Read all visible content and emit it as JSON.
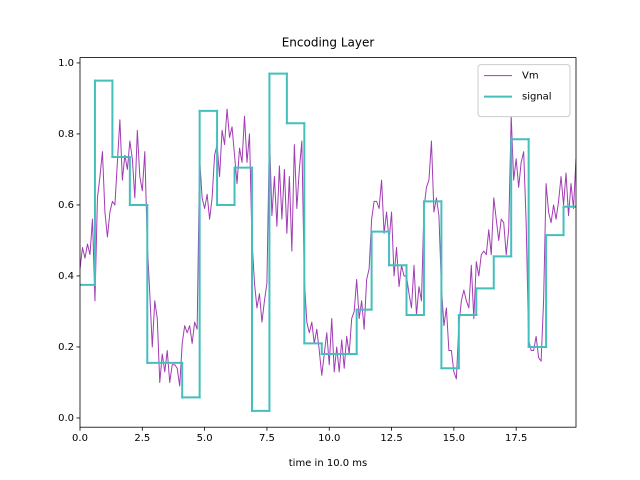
{
  "chart_data": {
    "type": "line",
    "title": "Encoding Layer",
    "xlabel": "time in 10.0 ms",
    "xlim": [
      0,
      19.9
    ],
    "ylim": [
      -0.026,
      1.015
    ],
    "xticks": [
      {
        "value": 0,
        "label": "0.0"
      },
      2.5,
      {
        "value": 5,
        "label": "5.0"
      },
      7.5,
      {
        "value": 10,
        "label": "10.0"
      },
      12.5,
      {
        "value": 15,
        "label": "15.0"
      },
      17.5
    ],
    "yticks": [
      {
        "value": 0,
        "label": "0.0"
      },
      0.2,
      0.4,
      0.6,
      0.8,
      {
        "value": 1,
        "label": "1.0"
      }
    ],
    "legend": "upper right",
    "series": [
      {
        "name": "Vm",
        "color": "#a23cb4",
        "linewidth": 1,
        "x": [
          0,
          0.1,
          0.2,
          0.3,
          0.4,
          0.5,
          0.6,
          0.7,
          0.8,
          0.9,
          1,
          1.1,
          1.2,
          1.3,
          1.4,
          1.5,
          1.6,
          1.7,
          1.8,
          1.9,
          2,
          2.1,
          2.2,
          2.3,
          2.4,
          2.5,
          2.6,
          2.7,
          2.8,
          2.9,
          3,
          3.1,
          3.2,
          3.3,
          3.4,
          3.5,
          3.6,
          3.7,
          3.8,
          3.9,
          4,
          4.1,
          4.2,
          4.3,
          4.4,
          4.5,
          4.6,
          4.7,
          4.8,
          4.9,
          5,
          5.1,
          5.2,
          5.3,
          5.4,
          5.5,
          5.6,
          5.7,
          5.8,
          5.9,
          6,
          6.1,
          6.2,
          6.3,
          6.4,
          6.5,
          6.6,
          6.7,
          6.8,
          6.9,
          7,
          7.1,
          7.2,
          7.3,
          7.4,
          7.5,
          7.6,
          7.7,
          7.8,
          7.9,
          8,
          8.1,
          8.2,
          8.3,
          8.4,
          8.5,
          8.6,
          8.7,
          8.8,
          8.9,
          9,
          9.1,
          9.2,
          9.3,
          9.4,
          9.5,
          9.6,
          9.7,
          9.8,
          9.9,
          10,
          10.1,
          10.2,
          10.3,
          10.4,
          10.5,
          10.6,
          10.7,
          10.8,
          10.9,
          11,
          11.1,
          11.2,
          11.3,
          11.4,
          11.5,
          11.6,
          11.7,
          11.8,
          11.9,
          12,
          12.1,
          12.2,
          12.3,
          12.4,
          12.5,
          12.6,
          12.7,
          12.8,
          12.9,
          13,
          13.1,
          13.2,
          13.3,
          13.4,
          13.5,
          13.6,
          13.7,
          13.8,
          13.9,
          14,
          14.1,
          14.2,
          14.3,
          14.4,
          14.5,
          14.6,
          14.7,
          14.8,
          14.9,
          15,
          15.1,
          15.2,
          15.3,
          15.4,
          15.5,
          15.6,
          15.7,
          15.8,
          15.9,
          16,
          16.1,
          16.2,
          16.3,
          16.4,
          16.5,
          16.6,
          16.7,
          16.8,
          16.9,
          17,
          17.1,
          17.2,
          17.3,
          17.4,
          17.5,
          17.6,
          17.7,
          17.8,
          17.9,
          18,
          18.1,
          18.2,
          18.3,
          18.4,
          18.5,
          18.6,
          18.7,
          18.8,
          18.9,
          19,
          19.1,
          19.2,
          19.3,
          19.4,
          19.5,
          19.6,
          19.7,
          19.8,
          19.9
        ],
        "values": [
          0.42,
          0.48,
          0.45,
          0.49,
          0.46,
          0.56,
          0.33,
          0.62,
          0.68,
          0.75,
          0.58,
          0.51,
          0.58,
          0.61,
          0.6,
          0.72,
          0.84,
          0.67,
          0.74,
          0.7,
          0.78,
          0.73,
          0.62,
          0.81,
          0.68,
          0.64,
          0.75,
          0.49,
          0.35,
          0.2,
          0.33,
          0.28,
          0.1,
          0.18,
          0.13,
          0.19,
          0.1,
          0.15,
          0.15,
          0.14,
          0.09,
          0.21,
          0.26,
          0.24,
          0.26,
          0.21,
          0.27,
          0.25,
          0.73,
          0.62,
          0.59,
          0.63,
          0.56,
          0.62,
          0.74,
          0.77,
          0.68,
          0.81,
          0.77,
          0.87,
          0.79,
          0.82,
          0.74,
          0.66,
          0.76,
          0.72,
          0.85,
          0.72,
          0.8,
          0.5,
          0.38,
          0.31,
          0.35,
          0.27,
          0.33,
          0.38,
          0.8,
          0.57,
          0.68,
          0.54,
          0.71,
          0.56,
          0.7,
          0.52,
          0.68,
          0.47,
          0.77,
          0.59,
          0.7,
          0.78,
          0.39,
          0.27,
          0.24,
          0.27,
          0.21,
          0.25,
          0.19,
          0.12,
          0.18,
          0.24,
          0.15,
          0.28,
          0.13,
          0.2,
          0.13,
          0.22,
          0.14,
          0.23,
          0.18,
          0.28,
          0.3,
          0.39,
          0.28,
          0.33,
          0.25,
          0.39,
          0.42,
          0.56,
          0.61,
          0.61,
          0.59,
          0.67,
          0.52,
          0.58,
          0.5,
          0.58,
          0.4,
          0.48,
          0.37,
          0.43,
          0.4,
          0.4,
          0.35,
          0.31,
          0.43,
          0.29,
          0.37,
          0.33,
          0.59,
          0.65,
          0.67,
          0.78,
          0.58,
          0.62,
          0.57,
          0.37,
          0.26,
          0.31,
          0.19,
          0.19,
          0.13,
          0.11,
          0.26,
          0.33,
          0.36,
          0.33,
          0.31,
          0.43,
          0.28,
          0.44,
          0.4,
          0.46,
          0.47,
          0.46,
          0.53,
          0.46,
          0.62,
          0.56,
          0.5,
          0.56,
          0.55,
          0.46,
          0.53,
          0.85,
          0.67,
          0.73,
          0.65,
          0.72,
          0.75,
          0.55,
          0.22,
          0.19,
          0.19,
          0.23,
          0.17,
          0.16,
          0.33,
          0.66,
          0.58,
          0.55,
          0.6,
          0.56,
          0.61,
          0.68,
          0.6,
          0.69,
          0.57,
          0.66,
          0.59,
          0.73
        ]
      },
      {
        "name": "signal",
        "color": "#45bfbd",
        "linewidth": 2,
        "drawstyle": "steps-post",
        "x": [
          0,
          0.6,
          1.3,
          2,
          2.7,
          4.1,
          4.8,
          5.5,
          6.2,
          6.9,
          7.6,
          8.3,
          9,
          9.7,
          11.1,
          11.7,
          12.4,
          13.1,
          13.8,
          14.5,
          15.2,
          15.9,
          16.6,
          17.3,
          18,
          18.7,
          19.4,
          19.9
        ],
        "values": [
          0.375,
          0.95,
          0.735,
          0.6,
          0.155,
          0.058,
          0.865,
          0.6,
          0.705,
          0.02,
          0.97,
          0.83,
          0.21,
          0.18,
          0.305,
          0.525,
          0.43,
          0.29,
          0.61,
          0.14,
          0.29,
          0.365,
          0.455,
          0.785,
          0.2,
          0.515,
          0.595,
          0.595
        ]
      }
    ]
  }
}
